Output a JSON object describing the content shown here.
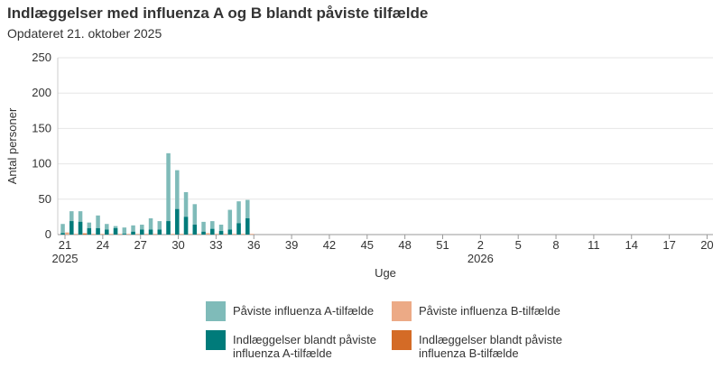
{
  "title": "Indlæggelser med influenza A og B blandt påviste tilfælde",
  "subtitle": "Opdateret 21. oktober 2025",
  "chart_data": {
    "type": "bar",
    "xlabel": "Uge",
    "ylabel": "Antal personer",
    "ylim": [
      0,
      250
    ],
    "yticks": [
      "0",
      "50",
      "100",
      "150",
      "200",
      "250"
    ],
    "grid": true,
    "legend_placement": "bottom",
    "weeks": [
      21,
      22,
      23,
      24,
      25,
      26,
      27,
      28,
      29,
      30,
      31,
      32,
      33,
      34,
      35,
      36,
      37,
      38,
      39,
      40,
      41,
      42,
      43,
      44,
      45,
      46,
      47,
      48,
      49,
      50,
      51,
      52,
      1,
      2,
      3,
      4,
      5,
      6,
      7,
      8,
      9,
      10,
      11,
      12,
      13,
      14,
      15,
      16,
      17,
      18,
      19,
      20
    ],
    "xtick_labels": [
      {
        "week_index": 0,
        "label": "21",
        "year": "2025"
      },
      {
        "week_index": 3,
        "label": "24"
      },
      {
        "week_index": 6,
        "label": "27"
      },
      {
        "week_index": 9,
        "label": "30"
      },
      {
        "week_index": 12,
        "label": "33"
      },
      {
        "week_index": 15,
        "label": "36"
      },
      {
        "week_index": 18,
        "label": "39"
      },
      {
        "week_index": 21,
        "label": "42"
      },
      {
        "week_index": 24,
        "label": "45"
      },
      {
        "week_index": 27,
        "label": "48"
      },
      {
        "week_index": 30,
        "label": "51"
      },
      {
        "week_index": 33,
        "label": "2",
        "year": "2026"
      },
      {
        "week_index": 36,
        "label": "5"
      },
      {
        "week_index": 39,
        "label": "8"
      },
      {
        "week_index": 42,
        "label": "11"
      },
      {
        "week_index": 45,
        "label": "14"
      },
      {
        "week_index": 48,
        "label": "17"
      },
      {
        "week_index": 51,
        "label": "20"
      }
    ],
    "series": [
      {
        "name": "Påviste influenza A-tilfælde",
        "color": "#7fbbb9",
        "values": [
          15,
          33,
          33,
          17,
          27,
          15,
          12,
          10,
          13,
          14,
          23,
          19,
          115,
          91,
          60,
          43,
          18,
          19,
          14,
          35,
          47,
          49
        ]
      },
      {
        "name": "Påviste influenza B-tilfælde",
        "color": "#ecaa86",
        "values": [
          3,
          1,
          2,
          1,
          1,
          1,
          1,
          1,
          1,
          1,
          1,
          0,
          1,
          1,
          1,
          1,
          2,
          1,
          1,
          1,
          1,
          1
        ]
      },
      {
        "name": "Indlæggelser blandt påviste influenza A-tilfælde",
        "color": "#007b7a",
        "values": [
          2,
          19,
          18,
          9,
          9,
          7,
          9,
          1,
          4,
          7,
          7,
          7,
          19,
          36,
          25,
          14,
          4,
          8,
          5,
          7,
          16,
          23
        ]
      },
      {
        "name": "Indlæggelser blandt påviste influenza B-tilfælde",
        "color": "#d46b26",
        "values": [
          0,
          0,
          1,
          0,
          0,
          0,
          0,
          0,
          0,
          0,
          0,
          0,
          0,
          0,
          0,
          0,
          0,
          0,
          0,
          0,
          0,
          0
        ]
      }
    ]
  },
  "legend": [
    {
      "label": "Påviste influenza A-tilfælde",
      "color": "#7fbbb9"
    },
    {
      "label": "Påviste influenza B-tilfælde",
      "color": "#ecaa86"
    },
    {
      "label": "Indlæggelser blandt påviste influenza A-tilfælde",
      "color": "#007b7a"
    },
    {
      "label": "Indlæggelser blandt påviste influenza B-tilfælde",
      "color": "#d46b26"
    }
  ]
}
